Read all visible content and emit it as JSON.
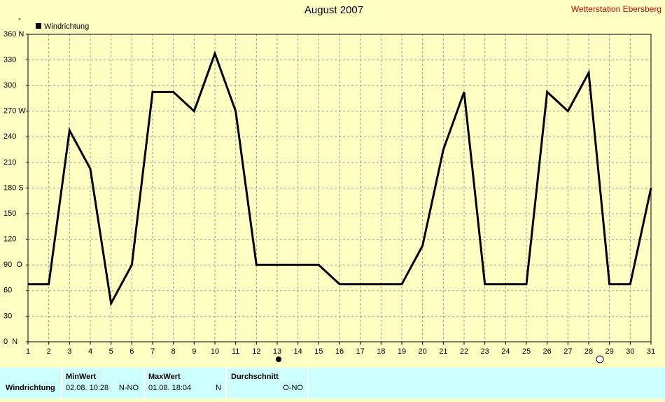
{
  "chart_data": {
    "type": "line",
    "title": "August 2007",
    "source": "Wetterstation Ebersberg",
    "unit": "°",
    "x": [
      1,
      2,
      3,
      4,
      5,
      6,
      7,
      8,
      9,
      10,
      11,
      12,
      13,
      14,
      15,
      16,
      17,
      18,
      19,
      20,
      21,
      22,
      23,
      24,
      25,
      26,
      27,
      28,
      29,
      30,
      31
    ],
    "xlim": [
      1,
      31
    ],
    "xticks": [
      1,
      2,
      3,
      4,
      5,
      6,
      7,
      8,
      9,
      10,
      11,
      12,
      13,
      14,
      15,
      16,
      17,
      18,
      19,
      20,
      21,
      22,
      23,
      24,
      25,
      26,
      27,
      28,
      29,
      30,
      31
    ],
    "series": [
      {
        "name": "Windrichtung",
        "color": "#000000",
        "values": [
          67.5,
          67.5,
          247.5,
          202.5,
          45,
          90,
          292.5,
          292.5,
          270,
          337.5,
          270,
          90,
          90,
          90,
          90,
          67.5,
          67.5,
          67.5,
          67.5,
          112.5,
          225,
          292.5,
          67.5,
          67.5,
          67.5,
          292.5,
          270,
          315,
          67.5,
          67.5,
          180
        ]
      }
    ],
    "ylim": [
      0,
      360
    ],
    "yticks": [
      {
        "value": 0,
        "label": "0  N"
      },
      30,
      60,
      {
        "value": 90,
        "label": "90  O"
      },
      120,
      150,
      {
        "value": 180,
        "label": "180 S"
      },
      210,
      240,
      {
        "value": 270,
        "label": "270 W"
      },
      300,
      330,
      {
        "value": 360,
        "label": "360 N"
      }
    ],
    "grid": true,
    "legend": "top-left"
  },
  "stats_table": {
    "row_label": "Windrichtung",
    "columns": [
      {
        "header": "MinWert",
        "time": "02.08.  10:28",
        "value": "N-NO"
      },
      {
        "header": "MaxWert",
        "time": "01.08.  18:04",
        "value": "N"
      },
      {
        "header": "Durchschnitt",
        "value": "O-NO"
      }
    ]
  }
}
